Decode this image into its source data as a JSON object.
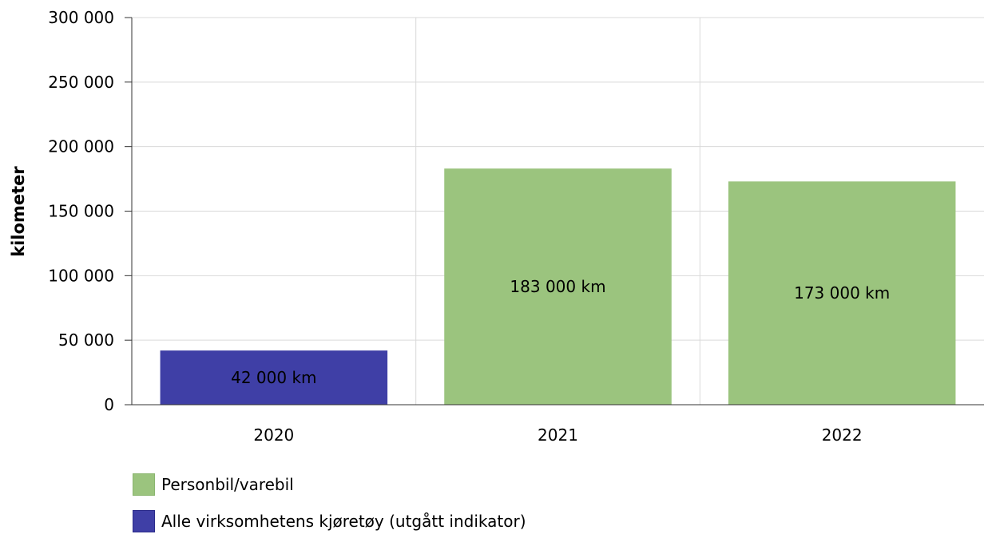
{
  "chart_data": {
    "type": "bar",
    "categories": [
      "2020",
      "2021",
      "2022"
    ],
    "series": [
      {
        "name": "Personbil/varebil",
        "color": "#9bc47e",
        "values": [
          null,
          183000,
          173000
        ]
      },
      {
        "name": "Alle virksomhetens kjøretøy (utgått indikator)",
        "color": "#3f3fa6",
        "values": [
          42000,
          null,
          null
        ]
      }
    ],
    "data_labels": [
      "42 000 km",
      "183 000 km",
      "173 000 km"
    ],
    "ylabel": "kilometer",
    "ylim": [
      0,
      300000
    ],
    "yticks": [
      0,
      50000,
      100000,
      150000,
      200000,
      250000,
      300000
    ],
    "ytick_labels": [
      "0",
      "50 000",
      "100 000",
      "150 000",
      "200 000",
      "250 000",
      "300 000"
    ],
    "grid": true,
    "legend_position": "bottom-left"
  }
}
